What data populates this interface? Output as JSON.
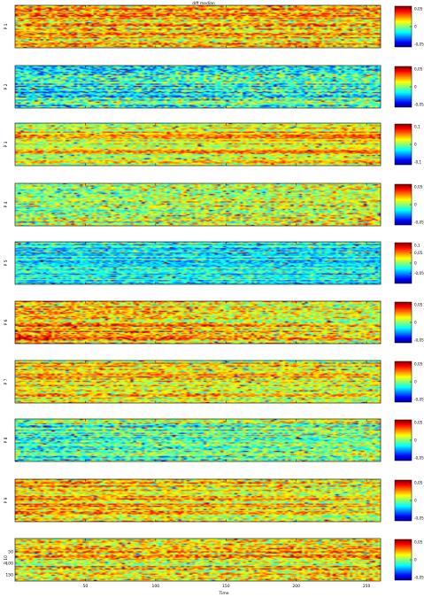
{
  "chart_data": {
    "type": "heatmap",
    "title": "diff median",
    "xlabel": "Time",
    "x_ticks": [
      50,
      100,
      150,
      200,
      250
    ],
    "xlim": [
      0,
      260
    ],
    "colormap": "jet",
    "colormap_stops": [
      "#00008f",
      "#0000ff",
      "#00ffff",
      "#ffff00",
      "#ff0000",
      "#800000"
    ],
    "grid": false,
    "panels": [
      {
        "ylabel": "P 1",
        "clim": [
          -0.05,
          0.05
        ],
        "cbar_ticks": [
          {
            "v": 0.05,
            "label": "0,05"
          },
          {
            "v": 0,
            "label": "0"
          },
          {
            "v": -0.05,
            "label": "-0,05"
          }
        ],
        "y_ticks": [],
        "bias": 0.35,
        "noise": 0.35
      },
      {
        "ylabel": "P 2",
        "clim": [
          -0.05,
          0.05
        ],
        "cbar_ticks": [
          {
            "v": 0.05,
            "label": "0,05"
          },
          {
            "v": 0,
            "label": "0"
          },
          {
            "v": -0.05,
            "label": "-0,05"
          }
        ],
        "y_ticks": [],
        "bias": -0.15,
        "noise": 0.4
      },
      {
        "ylabel": "P 3",
        "clim": [
          -0.1,
          0.1
        ],
        "cbar_ticks": [
          {
            "v": 0.1,
            "label": "0,1"
          },
          {
            "v": 0,
            "label": "0"
          },
          {
            "v": -0.1,
            "label": "-0,1"
          }
        ],
        "y_ticks": [],
        "bias": 0.25,
        "noise": 0.25
      },
      {
        "ylabel": "P 4",
        "clim": [
          -0.05,
          0.05
        ],
        "cbar_ticks": [
          {
            "v": 0.05,
            "label": "0,05"
          },
          {
            "v": 0,
            "label": "0"
          },
          {
            "v": -0.05,
            "label": "-0,05"
          }
        ],
        "y_ticks": [],
        "bias": 0.1,
        "noise": 0.35
      },
      {
        "ylabel": "P 5",
        "clim": [
          -0.1,
          0.1
        ],
        "cbar_ticks": [
          {
            "v": 0.1,
            "label": "0,1"
          },
          {
            "v": 0.05,
            "label": "0,05"
          },
          {
            "v": 0,
            "label": "0"
          },
          {
            "v": -0.05,
            "label": "-0,05"
          }
        ],
        "y_ticks": [],
        "bias": -0.25,
        "noise": 0.25
      },
      {
        "ylabel": "P 6",
        "clim": [
          -0.05,
          0.05
        ],
        "cbar_ticks": [
          {
            "v": 0.05,
            "label": "0,05"
          },
          {
            "v": 0,
            "label": "0"
          },
          {
            "v": -0.05,
            "label": "-0,05"
          }
        ],
        "y_ticks": [],
        "bias": 0.35,
        "noise": 0.35
      },
      {
        "ylabel": "P 7",
        "clim": [
          -0.05,
          0.05
        ],
        "cbar_ticks": [
          {
            "v": 0.05,
            "label": "0,05"
          },
          {
            "v": 0,
            "label": "0"
          },
          {
            "v": -0.05,
            "label": "-0,05"
          }
        ],
        "y_ticks": [],
        "bias": 0.3,
        "noise": 0.3
      },
      {
        "ylabel": "P 8",
        "clim": [
          -0.05,
          0.05
        ],
        "cbar_ticks": [
          {
            "v": 0.05,
            "label": "0,05"
          },
          {
            "v": 0,
            "label": "0"
          },
          {
            "v": -0.05,
            "label": "-0,05"
          }
        ],
        "y_ticks": [],
        "bias": -0.05,
        "noise": 0.35
      },
      {
        "ylabel": "P 9",
        "clim": [
          -0.05,
          0.05
        ],
        "cbar_ticks": [
          {
            "v": 0.05,
            "label": "0,05"
          },
          {
            "v": 0,
            "label": "0"
          },
          {
            "v": -0.05,
            "label": "-0,05"
          }
        ],
        "y_ticks": [],
        "bias": 0.3,
        "noise": 0.3
      },
      {
        "ylabel": "P 10",
        "clim": [
          -0.05,
          0.05
        ],
        "cbar_ticks": [
          {
            "v": 0.05,
            "label": "0,05"
          },
          {
            "v": 0,
            "label": "0"
          },
          {
            "v": -0.05,
            "label": "-0,05"
          }
        ],
        "y_ticks": [
          50,
          100,
          150
        ],
        "bias": 0.3,
        "noise": 0.35
      }
    ]
  }
}
